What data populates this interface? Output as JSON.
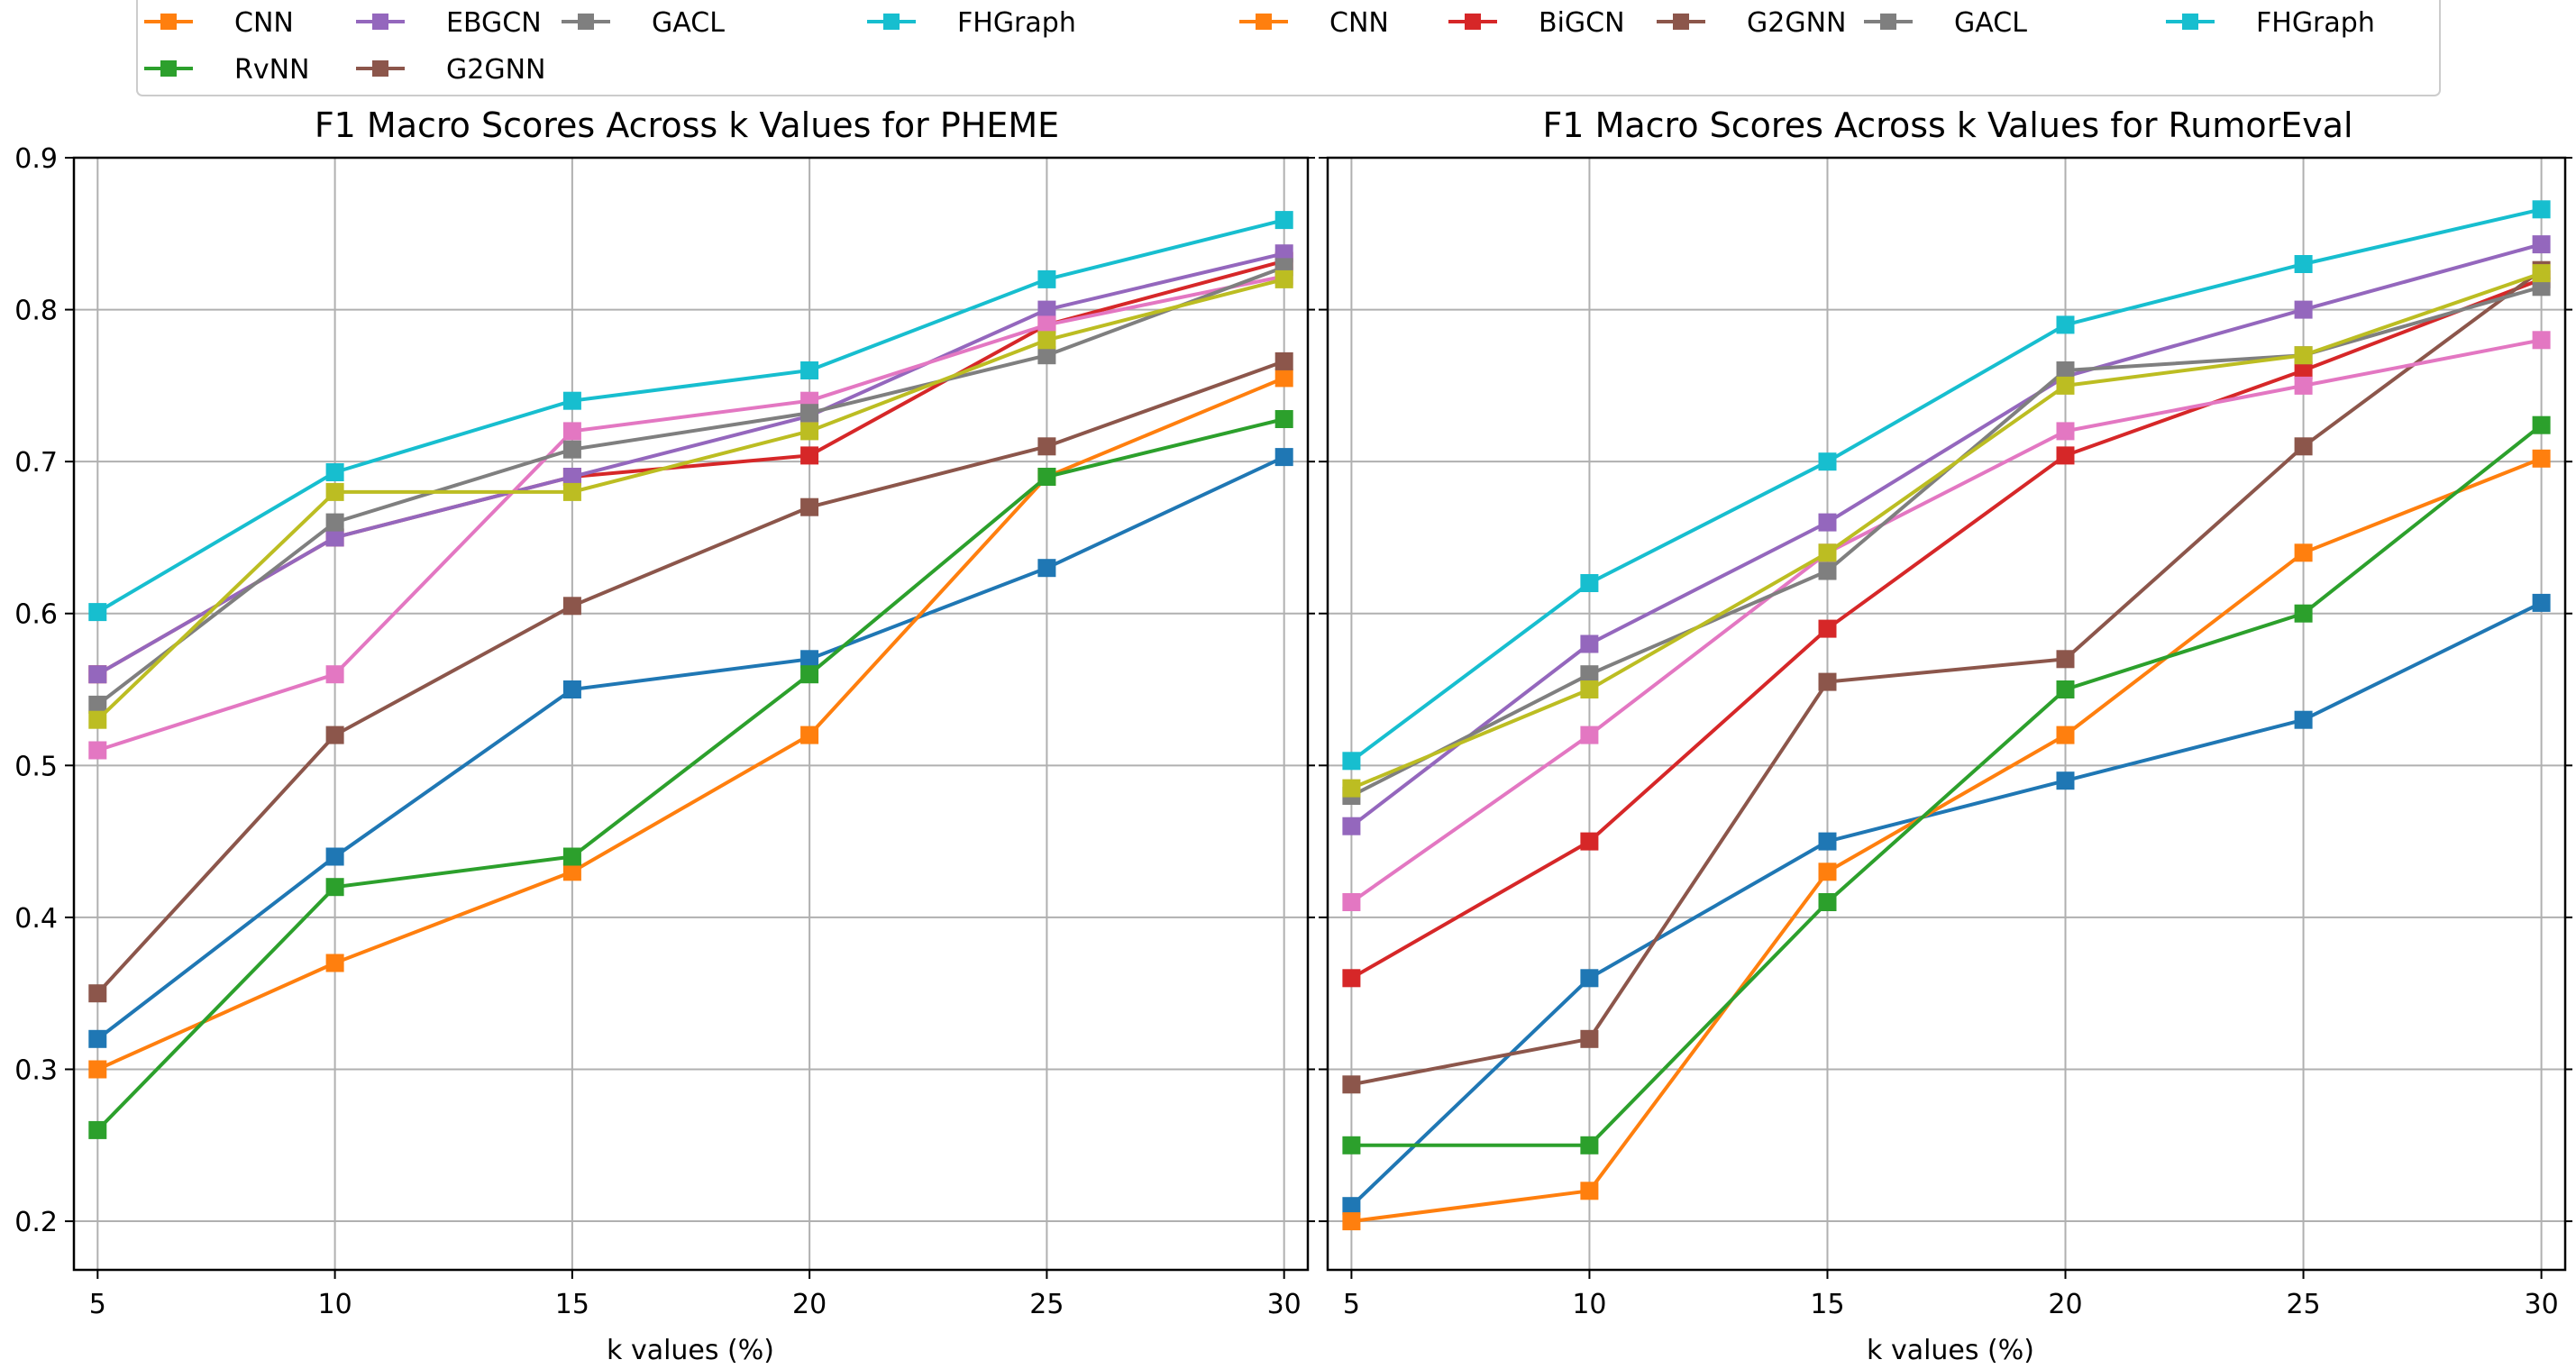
{
  "legend": [
    {
      "label": "CNN",
      "color": "#ff7f0e"
    },
    {
      "label": "EBGCN",
      "color": "#9467bd"
    },
    {
      "label": "GACL",
      "color": "#7f7f7f"
    },
    {
      "label": "FHGraph",
      "color": "#17becf"
    },
    {
      "label": "CNN",
      "color": "#ff7f0e"
    },
    {
      "label": "BiGCN",
      "color": "#d62728"
    },
    {
      "label": "G2GNN",
      "color": "#8c564b"
    },
    {
      "label": "GACL",
      "color": "#7f7f7f"
    },
    {
      "label": "FHGraph",
      "color": "#17becf"
    },
    {
      "label": "RvNN",
      "color": "#2ca02c"
    },
    {
      "label": "G2GNN",
      "color": "#8c564b"
    }
  ],
  "chart_data": [
    {
      "type": "line",
      "title": "F1 Macro Scores Across k Values for PHEME",
      "xlabel": "k values (%)",
      "ylabel": "",
      "x": [
        5,
        10,
        15,
        20,
        25,
        30
      ],
      "xticks": [
        "5",
        "10",
        "15",
        "20",
        "25",
        "30"
      ],
      "yticks": [
        "0.2",
        "0.3",
        "0.4",
        "0.5",
        "0.6",
        "0.7",
        "0.8",
        "0.9"
      ],
      "xlim": [
        4.5,
        30.5
      ],
      "ylim": [
        0.168,
        0.9
      ],
      "grid": true,
      "series": [
        {
          "name": "blue",
          "color": "#1f77b4",
          "values": [
            0.32,
            0.44,
            0.55,
            0.57,
            0.63,
            0.703
          ]
        },
        {
          "name": "CNN",
          "color": "#ff7f0e",
          "values": [
            0.3,
            0.37,
            0.43,
            0.52,
            0.69,
            0.755
          ]
        },
        {
          "name": "RvNN",
          "color": "#2ca02c",
          "values": [
            0.26,
            0.42,
            0.44,
            0.56,
            0.69,
            0.728
          ]
        },
        {
          "name": "BiGCN",
          "color": "#d62728",
          "values": [
            0.56,
            0.65,
            0.69,
            0.704,
            0.79,
            0.832
          ]
        },
        {
          "name": "EBGCN",
          "color": "#9467bd",
          "values": [
            0.56,
            0.65,
            0.69,
            0.73,
            0.8,
            0.837
          ]
        },
        {
          "name": "G2GNN",
          "color": "#8c564b",
          "values": [
            0.35,
            0.52,
            0.605,
            0.67,
            0.71,
            0.766
          ]
        },
        {
          "name": "pink",
          "color": "#e377c2",
          "values": [
            0.51,
            0.56,
            0.72,
            0.74,
            0.79,
            0.822
          ]
        },
        {
          "name": "GACL",
          "color": "#7f7f7f",
          "values": [
            0.54,
            0.66,
            0.708,
            0.732,
            0.77,
            0.828
          ]
        },
        {
          "name": "olive",
          "color": "#bcbd22",
          "values": [
            0.53,
            0.68,
            0.68,
            0.72,
            0.78,
            0.82
          ]
        },
        {
          "name": "FHGraph",
          "color": "#17becf",
          "values": [
            0.601,
            0.693,
            0.74,
            0.76,
            0.82,
            0.859
          ]
        }
      ]
    },
    {
      "type": "line",
      "title": "F1 Macro Scores Across k Values for RumorEval",
      "xlabel": "k values (%)",
      "ylabel": "",
      "x": [
        5,
        10,
        15,
        20,
        25,
        30
      ],
      "xticks": [
        "5",
        "10",
        "15",
        "20",
        "25",
        "30"
      ],
      "yticks": [
        "0.2",
        "0.3",
        "0.4",
        "0.5",
        "0.6",
        "0.7",
        "0.8",
        "0.9"
      ],
      "xlim": [
        4.5,
        30.5
      ],
      "ylim": [
        0.168,
        0.9
      ],
      "grid": true,
      "series": [
        {
          "name": "blue",
          "color": "#1f77b4",
          "values": [
            0.21,
            0.36,
            0.45,
            0.49,
            0.53,
            0.607
          ]
        },
        {
          "name": "CNN",
          "color": "#ff7f0e",
          "values": [
            0.2,
            0.22,
            0.43,
            0.52,
            0.64,
            0.702
          ]
        },
        {
          "name": "RvNN",
          "color": "#2ca02c",
          "values": [
            0.25,
            0.25,
            0.41,
            0.55,
            0.6,
            0.724
          ]
        },
        {
          "name": "BiGCN",
          "color": "#d62728",
          "values": [
            0.36,
            0.45,
            0.59,
            0.704,
            0.76,
            0.82
          ]
        },
        {
          "name": "EBGCN",
          "color": "#9467bd",
          "values": [
            0.46,
            0.58,
            0.66,
            0.756,
            0.8,
            0.843
          ]
        },
        {
          "name": "G2GNN",
          "color": "#8c564b",
          "values": [
            0.29,
            0.32,
            0.555,
            0.57,
            0.71,
            0.826
          ]
        },
        {
          "name": "pink",
          "color": "#e377c2",
          "values": [
            0.41,
            0.52,
            0.64,
            0.72,
            0.75,
            0.78
          ]
        },
        {
          "name": "GACL",
          "color": "#7f7f7f",
          "values": [
            0.48,
            0.56,
            0.628,
            0.76,
            0.77,
            0.815
          ]
        },
        {
          "name": "olive",
          "color": "#bcbd22",
          "values": [
            0.485,
            0.55,
            0.64,
            0.75,
            0.77,
            0.824
          ]
        },
        {
          "name": "FHGraph",
          "color": "#17becf",
          "values": [
            0.503,
            0.62,
            0.7,
            0.79,
            0.83,
            0.866
          ]
        }
      ]
    }
  ]
}
